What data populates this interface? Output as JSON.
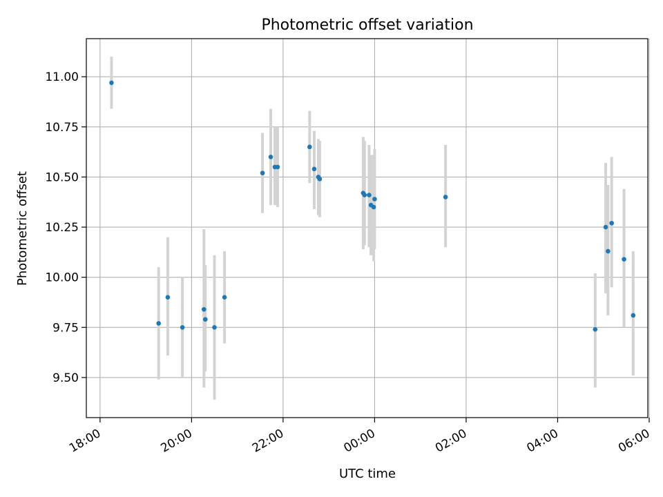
{
  "chart_data": {
    "type": "scatter",
    "title": "Photometric offset variation",
    "xlabel": "UTC time",
    "ylabel": "Photometric offset",
    "grid": true,
    "x_unit": "hours since 18:00 UTC",
    "xlim": [
      -0.3,
      11.97
    ],
    "ylim": [
      9.3,
      11.19
    ],
    "x_ticks": [
      {
        "value": 0,
        "label": "18:00"
      },
      {
        "value": 2,
        "label": "20:00"
      },
      {
        "value": 4,
        "label": "22:00"
      },
      {
        "value": 6,
        "label": "00:00"
      },
      {
        "value": 8,
        "label": "02:00"
      },
      {
        "value": 10,
        "label": "04:00"
      },
      {
        "value": 12,
        "label": "06:00"
      }
    ],
    "y_ticks": [
      {
        "value": 9.5,
        "label": "9.50"
      },
      {
        "value": 9.75,
        "label": "9.75"
      },
      {
        "value": 10.0,
        "label": "10.00"
      },
      {
        "value": 10.25,
        "label": "10.25"
      },
      {
        "value": 10.5,
        "label": "10.50"
      },
      {
        "value": 10.75,
        "label": "10.75"
      },
      {
        "value": 11.0,
        "label": "11.00"
      }
    ],
    "colors": {
      "point": "#1f77b4",
      "errorbar": "#d3d3d3",
      "grid": "#b0b0b0",
      "axis": "#000000"
    },
    "points": [
      {
        "t": 0.25,
        "y": 10.97,
        "lo": 10.84,
        "hi": 11.1
      },
      {
        "t": 1.28,
        "y": 9.77,
        "lo": 9.49,
        "hi": 10.05
      },
      {
        "t": 1.48,
        "y": 9.9,
        "lo": 9.61,
        "hi": 10.2
      },
      {
        "t": 1.8,
        "y": 9.75,
        "lo": 9.5,
        "hi": 10.0
      },
      {
        "t": 2.27,
        "y": 9.84,
        "lo": 9.45,
        "hi": 10.24
      },
      {
        "t": 2.3,
        "y": 9.79,
        "lo": 9.53,
        "hi": 10.06
      },
      {
        "t": 2.5,
        "y": 9.75,
        "lo": 9.39,
        "hi": 10.11
      },
      {
        "t": 2.72,
        "y": 9.9,
        "lo": 9.67,
        "hi": 10.13
      },
      {
        "t": 3.55,
        "y": 10.52,
        "lo": 10.32,
        "hi": 10.72
      },
      {
        "t": 3.73,
        "y": 10.6,
        "lo": 10.36,
        "hi": 10.84
      },
      {
        "t": 3.82,
        "y": 10.55,
        "lo": 10.36,
        "hi": 10.75
      },
      {
        "t": 3.88,
        "y": 10.55,
        "lo": 10.35,
        "hi": 10.75
      },
      {
        "t": 4.58,
        "y": 10.65,
        "lo": 10.47,
        "hi": 10.83
      },
      {
        "t": 4.68,
        "y": 10.54,
        "lo": 10.34,
        "hi": 10.73
      },
      {
        "t": 4.77,
        "y": 10.5,
        "lo": 10.31,
        "hi": 10.69
      },
      {
        "t": 4.8,
        "y": 10.49,
        "lo": 10.3,
        "hi": 10.68
      },
      {
        "t": 5.75,
        "y": 10.42,
        "lo": 10.14,
        "hi": 10.7
      },
      {
        "t": 5.78,
        "y": 10.41,
        "lo": 10.16,
        "hi": 10.68
      },
      {
        "t": 5.88,
        "y": 10.41,
        "lo": 10.15,
        "hi": 10.66
      },
      {
        "t": 5.92,
        "y": 10.36,
        "lo": 10.11,
        "hi": 10.61
      },
      {
        "t": 5.98,
        "y": 10.35,
        "lo": 10.08,
        "hi": 10.61
      },
      {
        "t": 6.0,
        "y": 10.39,
        "lo": 10.14,
        "hi": 10.64
      },
      {
        "t": 7.55,
        "y": 10.4,
        "lo": 10.15,
        "hi": 10.66
      },
      {
        "t": 10.82,
        "y": 9.74,
        "lo": 9.45,
        "hi": 10.02
      },
      {
        "t": 11.05,
        "y": 10.25,
        "lo": 9.92,
        "hi": 10.57
      },
      {
        "t": 11.1,
        "y": 10.13,
        "lo": 9.81,
        "hi": 10.46
      },
      {
        "t": 11.18,
        "y": 10.27,
        "lo": 9.95,
        "hi": 10.6
      },
      {
        "t": 11.45,
        "y": 10.09,
        "lo": 9.75,
        "hi": 10.44
      },
      {
        "t": 11.65,
        "y": 9.81,
        "lo": 9.51,
        "hi": 10.13
      }
    ]
  }
}
